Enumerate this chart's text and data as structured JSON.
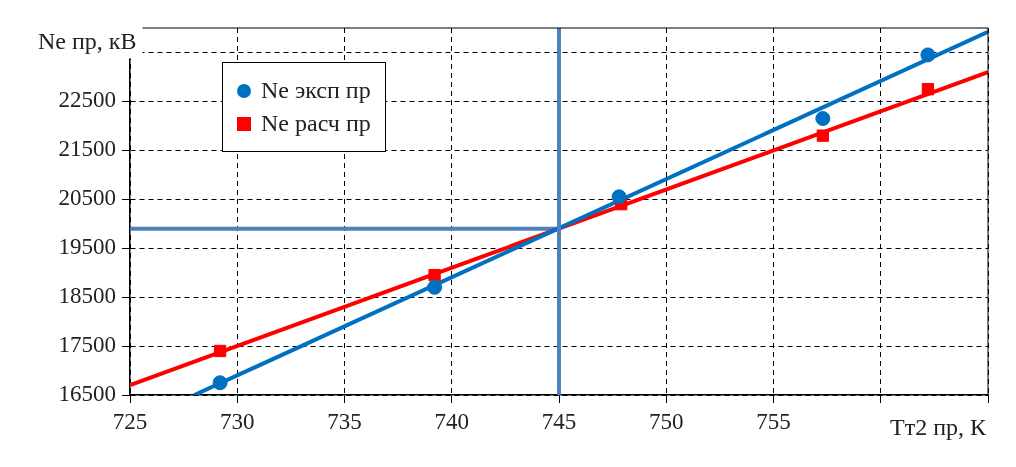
{
  "chart_data": {
    "type": "scatter",
    "xlabel": "Тт2 пр, К",
    "ylabel": "Ne пр, кВ",
    "xlim": [
      725,
      765
    ],
    "xticks": [
      725,
      730,
      735,
      740,
      745,
      750,
      755,
      {
        "value": 760,
        "label": null
      },
      {
        "value": 765,
        "label": null
      }
    ],
    "ylim": [
      16500,
      24000
    ],
    "yticks": [
      16500,
      17500,
      18500,
      19500,
      20500,
      21500,
      22500,
      {
        "value": 23500,
        "label": null
      }
    ],
    "grid": true,
    "legend": "top left",
    "series": [
      {
        "name": "Ne эксп пр",
        "marker": "circle",
        "color": "#0070c0",
        "x": [
          729.2,
          739.2,
          747.8,
          757.3,
          762.2
        ],
        "values": [
          16750,
          18700,
          20550,
          22150,
          23450
        ]
      },
      {
        "name": "Ne расч пр",
        "marker": "square",
        "color": "#ff0000",
        "x": [
          729.2,
          739.2,
          747.9,
          757.3,
          762.2
        ],
        "values": [
          17400,
          18950,
          20400,
          21800,
          22750
        ]
      },
      {
        "type": "line",
        "marker": "none",
        "color": "#0070c0",
        "x": [
          728,
          765
        ],
        "values": [
          16500,
          23920
        ]
      },
      {
        "type": "line",
        "marker": "none",
        "color": "#ff0000",
        "x": [
          725,
          765
        ],
        "values": [
          16700,
          23100
        ]
      },
      {
        "type": "line",
        "marker": "none",
        "color": "#4f81bd",
        "x": [
          725,
          745
        ],
        "values": [
          19900,
          19900
        ]
      }
    ],
    "ref_lines": [
      {
        "axis": "x",
        "value": 745,
        "color": "#4f81bd"
      }
    ]
  }
}
